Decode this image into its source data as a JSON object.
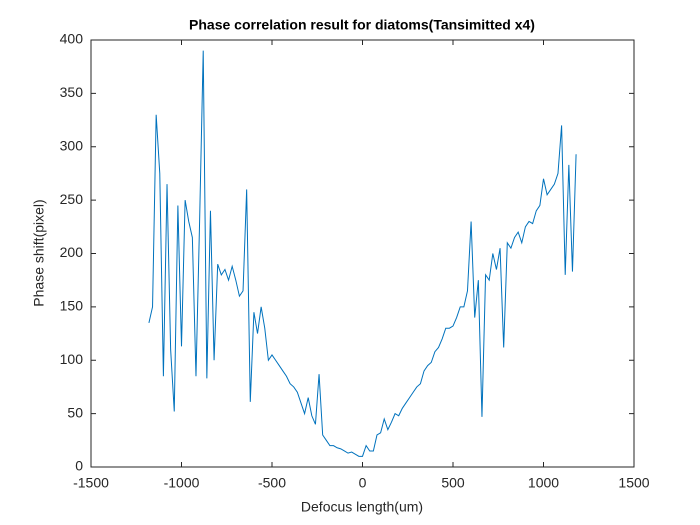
{
  "chart_data": {
    "type": "line",
    "title": "Phase correlation result for diatoms(Tansimitted x4)",
    "x_label": "Defocus length(um)",
    "y_label": "Phase shift(pixel)",
    "x": [
      -1180,
      -1160,
      -1140,
      -1120,
      -1100,
      -1080,
      -1060,
      -1040,
      -1020,
      -1000,
      -980,
      -960,
      -940,
      -920,
      -900,
      -880,
      -860,
      -840,
      -820,
      -800,
      -780,
      -760,
      -740,
      -720,
      -700,
      -680,
      -660,
      -640,
      -620,
      -600,
      -580,
      -560,
      -540,
      -520,
      -500,
      -480,
      -460,
      -440,
      -420,
      -400,
      -380,
      -360,
      -340,
      -320,
      -300,
      -280,
      -260,
      -240,
      -220,
      -200,
      -180,
      -160,
      -140,
      -120,
      -100,
      -80,
      -60,
      -40,
      -20,
      0,
      20,
      40,
      60,
      80,
      100,
      120,
      140,
      160,
      180,
      200,
      220,
      240,
      260,
      280,
      300,
      320,
      340,
      360,
      380,
      400,
      420,
      440,
      460,
      480,
      500,
      520,
      540,
      560,
      580,
      600,
      620,
      640,
      660,
      680,
      700,
      720,
      740,
      760,
      780,
      800,
      820,
      840,
      860,
      880,
      900,
      920,
      940,
      960,
      980,
      1000,
      1020,
      1040,
      1060,
      1080,
      1100,
      1120,
      1140,
      1160,
      1180
    ],
    "series": [
      {
        "color": "#0072bd",
        "values": [
          135,
          150,
          330,
          275,
          85,
          265,
          110,
          52,
          245,
          113,
          250,
          230,
          215,
          85,
          230,
          390,
          83,
          240,
          100,
          190,
          180,
          185,
          175,
          188,
          175,
          160,
          165,
          260,
          61,
          145,
          125,
          150,
          130,
          100,
          105,
          100,
          95,
          90,
          85,
          78,
          75,
          70,
          60,
          50,
          65,
          48,
          40,
          87,
          30,
          25,
          20,
          20,
          18,
          17,
          15,
          13,
          14,
          12,
          10,
          10,
          20,
          15,
          15,
          30,
          32,
          45,
          35,
          42,
          50,
          48,
          55,
          60,
          65,
          70,
          75,
          78,
          90,
          95,
          98,
          108,
          112,
          120,
          130,
          130,
          132,
          140,
          150,
          150,
          165,
          230,
          140,
          175,
          47,
          180,
          175,
          200,
          185,
          205,
          112,
          210,
          205,
          215,
          220,
          210,
          225,
          230,
          228,
          240,
          245,
          270,
          255,
          260,
          265,
          275,
          320,
          180,
          283,
          183,
          293
        ]
      }
    ],
    "xlim": [
      -1500,
      1500
    ],
    "xticks": [
      -1500,
      -1000,
      -500,
      0,
      500,
      1000,
      1500
    ],
    "ylim": [
      0,
      400
    ],
    "yticks": [
      0,
      50,
      100,
      150,
      200,
      250,
      300,
      350,
      400
    ]
  }
}
